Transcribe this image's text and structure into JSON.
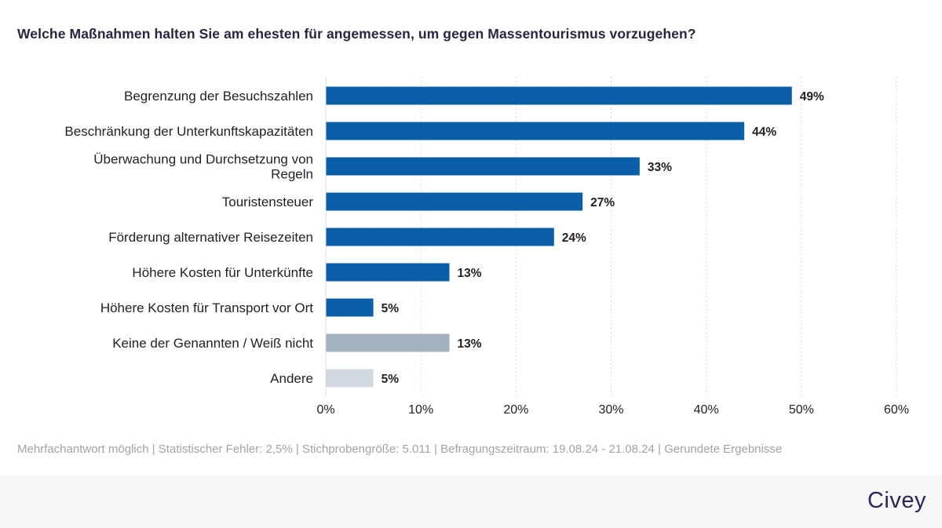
{
  "title": "Welche Maßnahmen halten Sie am ehesten für angemessen, um gegen Massentourismus vorzugehen?",
  "footnote": "Mehrfachantwort möglich | Statistischer Fehler: 2,5% | Stichprobengröße: 5.011 | Befragungszeitraum: 19.08.24 - 21.08.24 | Gerundete Ergebnisse",
  "brand": "Civey",
  "colors": {
    "primary": "#0b5ea8",
    "neutral": "#a3b2bf",
    "other": "#d1d9e0",
    "text": "#222222",
    "grid": "#dcdcdc"
  },
  "chart_data": {
    "type": "bar",
    "orientation": "horizontal",
    "categories": [
      [
        "Begrenzung der Besuchszahlen"
      ],
      [
        "Beschränkung der Unterkunftskapazitäten"
      ],
      [
        "Überwachung und Durchsetzung von",
        "Regeln"
      ],
      [
        "Touristensteuer"
      ],
      [
        "Förderung alternativer Reisezeiten"
      ],
      [
        "Höhere Kosten für Unterkünfte"
      ],
      [
        "Höhere Kosten für Transport vor Ort"
      ],
      [
        "Keine der Genannten / Weiß nicht"
      ],
      [
        "Andere"
      ]
    ],
    "values": [
      49,
      44,
      33,
      27,
      24,
      13,
      5,
      13,
      5
    ],
    "value_labels": [
      "49%",
      "44%",
      "33%",
      "27%",
      "24%",
      "13%",
      "5%",
      "13%",
      "5%"
    ],
    "bar_color_keys": [
      "primary",
      "primary",
      "primary",
      "primary",
      "primary",
      "primary",
      "primary",
      "neutral",
      "other"
    ],
    "xlim": [
      0,
      60
    ],
    "xticks": [
      0,
      10,
      20,
      30,
      40,
      50,
      60
    ],
    "xtick_labels": [
      "0%",
      "10%",
      "20%",
      "30%",
      "40%",
      "50%",
      "60%"
    ],
    "grid": true,
    "unit": "%"
  }
}
